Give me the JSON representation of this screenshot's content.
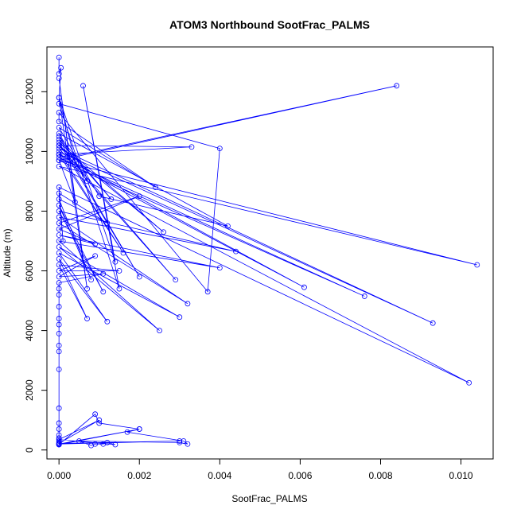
{
  "chart_data": {
    "type": "line",
    "title": "ATOM3 Northbound SootFrac_PALMS",
    "xlabel": "SootFrac_PALMS",
    "ylabel": "Altitude (m)",
    "xlim": [
      -0.0003,
      0.0108
    ],
    "ylim": [
      -300,
      13500
    ],
    "xticks": [
      0.0,
      0.002,
      0.004,
      0.006,
      0.008,
      0.01
    ],
    "xtick_labels": [
      "0.000",
      "0.002",
      "0.004",
      "0.006",
      "0.008",
      "0.010"
    ],
    "yticks": [
      0,
      2000,
      4000,
      6000,
      8000,
      10000,
      12000
    ],
    "ytick_labels": [
      "0",
      "2000",
      "4000",
      "6000",
      "8000",
      "10000",
      "12000"
    ],
    "grid": false,
    "series_color": "#0000ff",
    "points": [
      [
        0.0,
        13150
      ],
      [
        0.0,
        12600
      ],
      [
        5e-05,
        12800
      ],
      [
        0.0,
        11800
      ],
      [
        0.0004,
        9700
      ],
      [
        0.0,
        10200
      ],
      [
        0.0033,
        10150
      ],
      [
        0.0,
        9900
      ],
      [
        0.0002,
        9800
      ],
      [
        0.0084,
        12200
      ],
      [
        0.0,
        9700
      ],
      [
        0.0004,
        8300
      ],
      [
        0.0,
        12450
      ],
      [
        0.0007,
        5400
      ],
      [
        0.0,
        11800
      ],
      [
        0.0014,
        6300
      ],
      [
        0.0006,
        12200
      ],
      [
        0.0015,
        5400
      ],
      [
        0.0,
        11600
      ],
      [
        0.004,
        10100
      ],
      [
        0.0037,
        5300
      ],
      [
        0.0,
        11300
      ],
      [
        0.0,
        11000
      ],
      [
        0.0024,
        8800
      ],
      [
        0.0,
        10800
      ],
      [
        0.001,
        8500
      ],
      [
        0.0042,
        7500
      ],
      [
        0.0,
        10600
      ],
      [
        0.0007,
        9000
      ],
      [
        0.0,
        10500
      ],
      [
        0.0013,
        8400
      ],
      [
        0.0,
        10400
      ],
      [
        0.002,
        5800
      ],
      [
        0.0,
        10300
      ],
      [
        0.0026,
        7300
      ],
      [
        0.0,
        10200
      ],
      [
        0.0029,
        5700
      ],
      [
        0.0,
        10100
      ],
      [
        0.0093,
        4250
      ],
      [
        0.0,
        10000
      ],
      [
        0.0016,
        6600
      ],
      [
        0.0,
        9900
      ],
      [
        0.0061,
        5450
      ],
      [
        0.0,
        9800
      ],
      [
        0.0076,
        5150
      ],
      [
        0.0,
        9700
      ],
      [
        0.0104,
        6200
      ],
      [
        0.0,
        9500
      ],
      [
        0.0102,
        2250
      ],
      [
        0.0,
        8800
      ],
      [
        0.0001,
        7000
      ],
      [
        0.0,
        8600
      ],
      [
        0.0012,
        7600
      ],
      [
        0.0,
        8400
      ],
      [
        0.0008,
        5700
      ],
      [
        0.0,
        8200
      ],
      [
        0.0011,
        5300
      ],
      [
        0.0,
        8000
      ],
      [
        0.0044,
        6650
      ],
      [
        0.0,
        7800
      ],
      [
        0.0032,
        4900
      ],
      [
        0.0,
        7600
      ],
      [
        0.002,
        8500
      ],
      [
        0.0,
        7400
      ],
      [
        0.0009,
        6900
      ],
      [
        0.0,
        7200
      ],
      [
        0.004,
        6100
      ],
      [
        0.0,
        7000
      ],
      [
        0.0025,
        4000
      ],
      [
        0.0,
        6800
      ],
      [
        0.003,
        4450
      ],
      [
        0.0,
        6600
      ],
      [
        0.0012,
        4300
      ],
      [
        0.0,
        6400
      ],
      [
        0.0007,
        4400
      ],
      [
        0.0,
        6200
      ],
      [
        0.0015,
        6000
      ],
      [
        0.0,
        6000
      ],
      [
        0.0009,
        6500
      ],
      [
        0.0,
        5800
      ],
      [
        0.0011,
        5900
      ],
      [
        0.0,
        5600
      ],
      [
        0.0,
        5400
      ],
      [
        0.0,
        5200
      ],
      [
        0.0,
        4800
      ],
      [
        0.0,
        4400
      ],
      [
        0.0,
        4200
      ],
      [
        0.0,
        3900
      ],
      [
        0.0,
        3500
      ],
      [
        0.0,
        3300
      ],
      [
        0.0,
        2700
      ],
      [
        0.0,
        1400
      ],
      [
        0.0,
        900
      ],
      [
        0.0,
        700
      ],
      [
        0.0,
        500
      ],
      [
        0.0,
        400
      ],
      [
        0.0,
        300
      ],
      [
        0.0,
        250
      ],
      [
        0.0,
        200
      ],
      [
        0.0,
        180
      ],
      [
        0.0009,
        1200
      ],
      [
        0.001,
        900
      ],
      [
        0.002,
        700
      ],
      [
        0.0017,
        600
      ],
      [
        0.0031,
        300
      ],
      [
        0.0032,
        200
      ],
      [
        0.003,
        250
      ],
      [
        0.0005,
        300
      ],
      [
        0.0008,
        150
      ],
      [
        0.0009,
        200
      ],
      [
        0.0011,
        200
      ],
      [
        0.0012,
        250
      ],
      [
        0.0014,
        180
      ],
      [
        0.0,
        350
      ],
      [
        0.001,
        1000
      ],
      [
        0.0,
        220
      ],
      [
        0.003,
        300
      ],
      [
        0.0,
        200
      ],
      [
        0.002,
        700
      ],
      [
        0.0,
        180
      ]
    ]
  }
}
